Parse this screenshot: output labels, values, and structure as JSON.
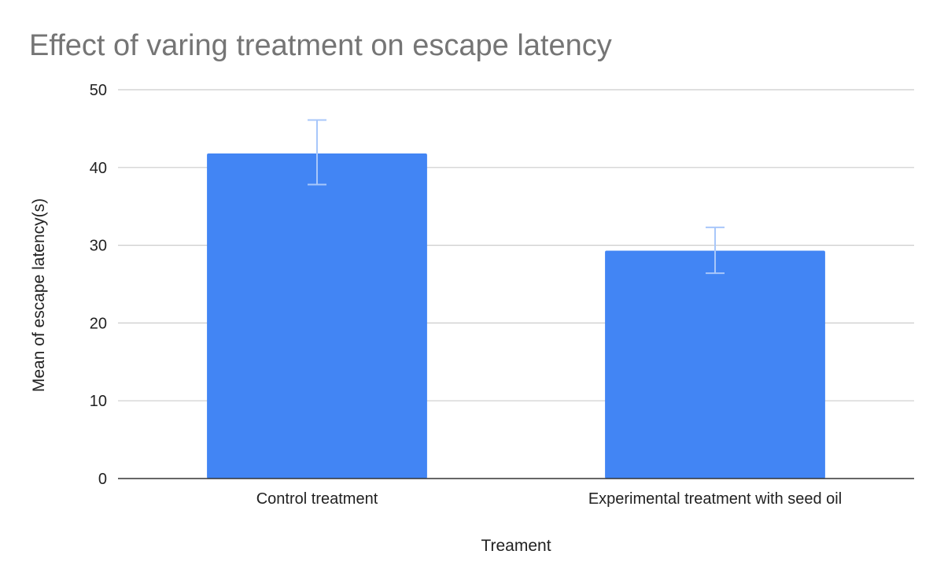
{
  "chart_data": {
    "type": "bar",
    "title": "Effect of varing treatment on escape latency",
    "xlabel": "Treament",
    "ylabel": "Mean of escape latency(s)",
    "categories": [
      "Control treatment",
      "Experimental treatment with seed oil"
    ],
    "series": [
      {
        "values": [
          41.8,
          29.3
        ],
        "error_low": [
          37.8,
          26.4
        ],
        "error_high": [
          46.1,
          32.3
        ]
      }
    ],
    "ylim": [
      0,
      50
    ],
    "yticks": [
      "0",
      "10",
      "20",
      "30",
      "40",
      "50"
    ],
    "grid": true,
    "legend": "none",
    "bar_color": "#4285f4",
    "error_bar_color": "#a8c7fa",
    "gridline_color": "#cccccc",
    "axis_color": "#333333"
  }
}
